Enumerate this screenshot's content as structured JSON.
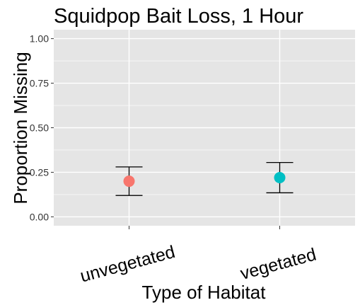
{
  "chart_data": {
    "type": "scatter",
    "title": "Squidpop Bait Loss, 1 Hour",
    "xlabel": "Type of Habitat",
    "ylabel": "Proportion Missing",
    "categories": [
      "unvegetated",
      "vegetated"
    ],
    "y_ticks": [
      "0.00",
      "0.25",
      "0.50",
      "0.75",
      "1.00"
    ],
    "ylim": [
      -0.05,
      1.05
    ],
    "grid": true,
    "legend": "none",
    "points": [
      {
        "category": "unvegetated",
        "value": 0.2,
        "lower": 0.12,
        "upper": 0.28,
        "color": "#F8766D"
      },
      {
        "category": "vegetated",
        "value": 0.22,
        "lower": 0.135,
        "upper": 0.305,
        "color": "#00BFC4"
      }
    ]
  },
  "colors": {
    "panel_background": "#E5E5E5",
    "grid": "#FFFFFF",
    "errorbar": "#000000"
  }
}
